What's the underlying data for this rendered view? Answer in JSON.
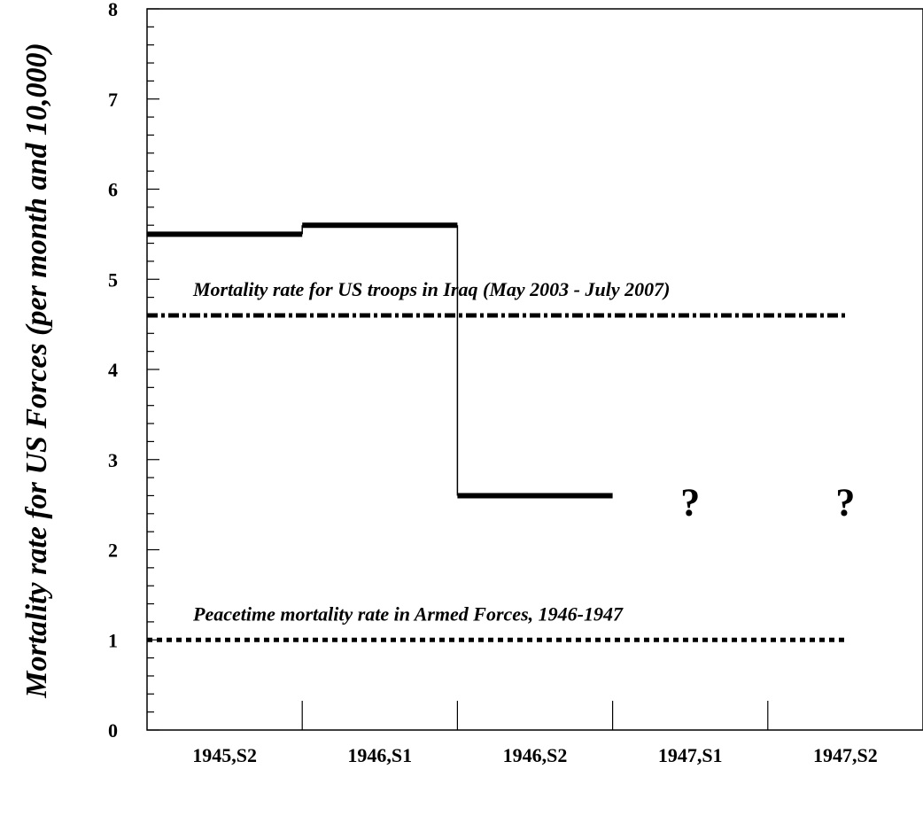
{
  "chart_data": {
    "type": "step-line",
    "title": "",
    "xlabel": "",
    "ylabel": "Mortality rate for US Forces (per month and 10,000)",
    "ylim": [
      0,
      8
    ],
    "yticks": [
      "0",
      "1",
      "2",
      "3",
      "4",
      "5",
      "6",
      "7",
      "8"
    ],
    "categories": [
      "1945,S2",
      "1946,S1",
      "1946,S2",
      "1947,S1",
      "1947,S2"
    ],
    "series": [
      {
        "values": [
          5.5,
          5.6,
          2.6,
          null,
          null
        ]
      }
    ],
    "unknown_markers": [
      {
        "category": "1947,S1",
        "text": "?",
        "y": 2.6
      },
      {
        "category": "1947,S2",
        "text": "?",
        "y": 2.6
      }
    ],
    "reference_lines": [
      {
        "label": "Mortality rate for US troops in Iraq (May 2003 - July 2007)",
        "value": 4.6,
        "style": "dash-dot"
      },
      {
        "label": "Peacetime mortality rate in Armed Forces, 1946-1947",
        "value": 1.0,
        "style": "dotted"
      }
    ],
    "grid": false,
    "legend": "none"
  }
}
